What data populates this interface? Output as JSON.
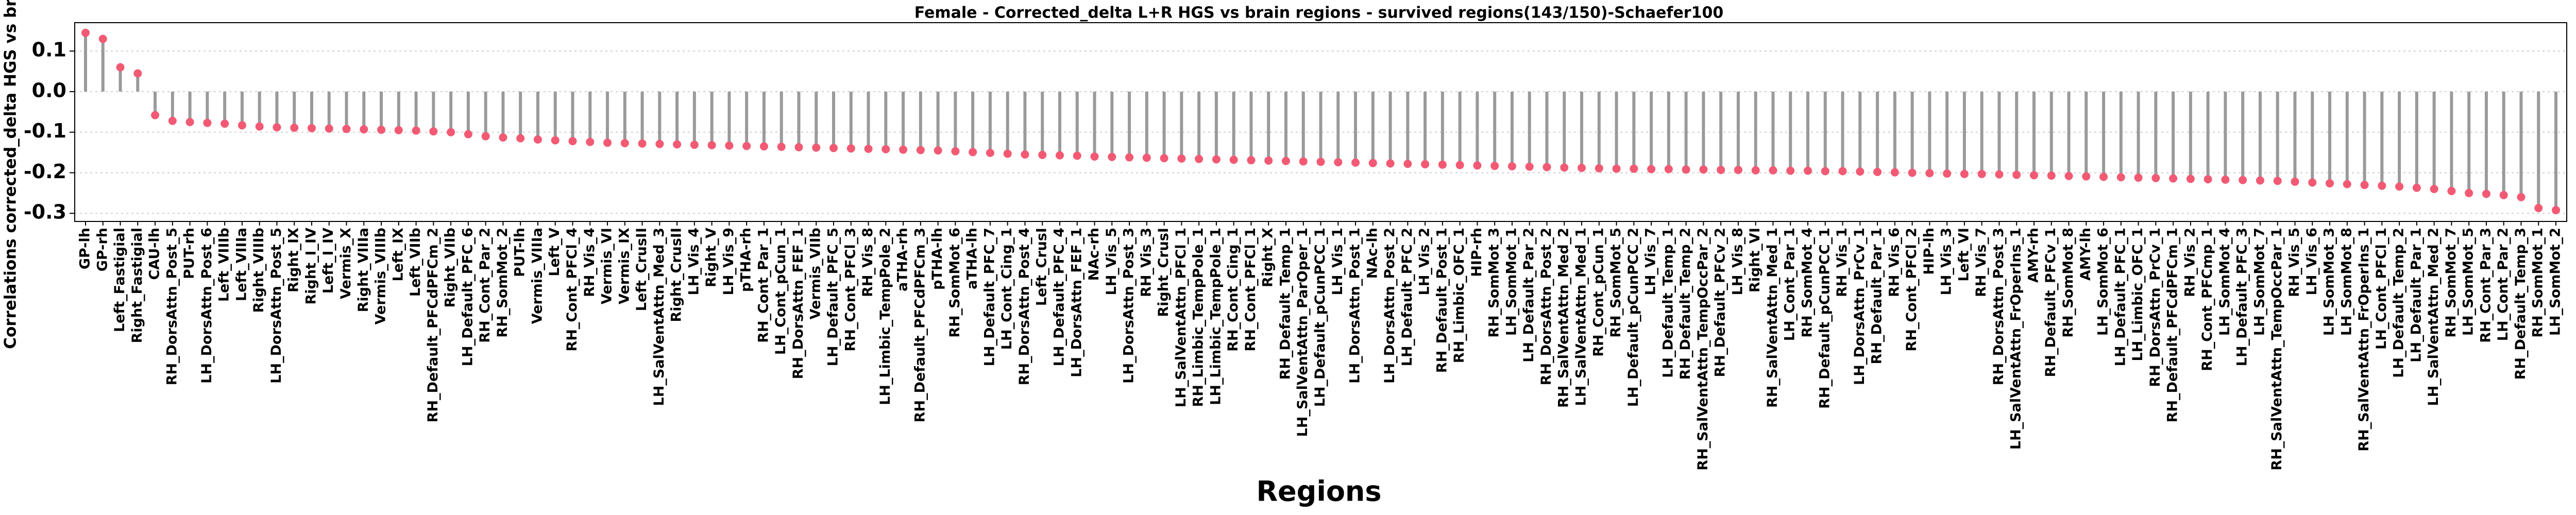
{
  "chart_data": {
    "type": "lollipop",
    "title": "Female - Corrected_delta L+R HGS vs brain regions - survived regions(143/150)-Schaefer100",
    "xlabel": "Regions",
    "ylabel": "Correlations corrected_delta HGS vs brain regions",
    "categories": [
      "GP-lh",
      "GP-rh",
      "Left_Fastigial",
      "Right_Fastigial",
      "CAU-lh",
      "RH_DorsAttn_Post_5",
      "PUT-rh",
      "LH_DorsAttn_Post_6",
      "Left_VIIIb",
      "Left_VIIIa",
      "Right_VIIIb",
      "LH_DorsAttn_Post_5",
      "Right_IX",
      "Right_I_IV",
      "Left_I_IV",
      "Vermis_X",
      "Right_VIIIa",
      "Vermis_VIIIb",
      "Left_IX",
      "Left_VIIb",
      "RH_Default_PFCdPFCm_2",
      "Right_VIIb",
      "LH_Default_PFC_6",
      "RH_Cont_Par_2",
      "RH_SomMot_2",
      "PUT-lh",
      "Vermis_VIIIa",
      "Left_V",
      "RH_Cont_PFCl_4",
      "RH_Vis_4",
      "Vermis_VI",
      "Vermis_IX",
      "Left_CrusII",
      "LH_SalVentAttn_Med_3",
      "Right_CrusII",
      "LH_Vis_4",
      "Right_V",
      "LH_Vis_9",
      "pTHA-rh",
      "RH_Cont_Par_1",
      "LH_Cont_pCun_1",
      "RH_DorsAttn_FEF_1",
      "Vermis_VIIb",
      "LH_Default_PFC_5",
      "RH_Cont_PFCl_3",
      "RH_Vis_8",
      "LH_Limbic_TempPole_2",
      "aTHA-rh",
      "RH_Default_PFCdPFCm_3",
      "pTHA-lh",
      "RH_SomMot_6",
      "aTHA-lh",
      "LH_Default_PFC_7",
      "LH_Cont_Cing_1",
      "RH_DorsAttn_Post_4",
      "Left_CrusI",
      "LH_Default_PFC_4",
      "LH_DorsAttn_FEF_1",
      "NAc-rh",
      "LH_Vis_5",
      "LH_DorsAttn_Post_3",
      "RH_Vis_3",
      "Right_CrusI",
      "LH_SalVentAttn_PFCl_1",
      "RH_Limbic_TempPole_1",
      "LH_Limbic_TempPole_1",
      "RH_Cont_Cing_1",
      "RH_Cont_PFCl_1",
      "Right_X",
      "RH_Default_Temp_1",
      "LH_SalVentAttn_ParOper_1",
      "LH_Default_pCunPCC_1",
      "LH_Vis_1",
      "LH_DorsAttn_Post_1",
      "NAc-lh",
      "LH_DorsAttn_Post_2",
      "LH_Default_PFC_2",
      "LH_Vis_2",
      "RH_Default_Post_1",
      "RH_Limbic_OFC_1",
      "HIP-rh",
      "RH_SomMot_3",
      "LH_SomMot_1",
      "LH_Default_Par_2",
      "RH_DorsAttn_Post_2",
      "RH_SalVentAttn_Med_2",
      "LH_SalVentAttn_Med_1",
      "RH_Cont_pCun_1",
      "RH_SomMot_5",
      "LH_Default_pCunPCC_2",
      "LH_Vis_7",
      "LH_Default_Temp_1",
      "RH_Default_Temp_2",
      "RH_SalVentAttn_TempOccPar_2",
      "RH_Default_PFCv_2",
      "LH_Vis_8",
      "Right_VI",
      "RH_SalVentAttn_Med_1",
      "LH_Cont_Par_1",
      "RH_SomMot_4",
      "RH_Default_pCunPCC_1",
      "RH_Vis_1",
      "LH_DorsAttn_PrCv_1",
      "RH_Default_Par_1",
      "RH_Vis_6",
      "RH_Cont_PFCl_2",
      "HIP-lh",
      "LH_Vis_3",
      "Left_VI",
      "RH_Vis_7",
      "RH_DorsAttn_Post_3",
      "LH_SalVentAttn_FrOperIns_1",
      "AMY-rh",
      "RH_Default_PFCv_1",
      "RH_SomMot_8",
      "AMY-lh",
      "LH_SomMot_6",
      "LH_Default_PFC_1",
      "LH_Limbic_OFC_1",
      "RH_DorsAttn_PrCv_1",
      "RH_Default_PFCdPFCm_1",
      "RH_Vis_2",
      "RH_Cont_PFCmp_1",
      "LH_SomMot_4",
      "LH_Default_PFC_3",
      "LH_SomMot_7",
      "RH_SalVentAttn_TempOccPar_1",
      "RH_Vis_5",
      "LH_Vis_6",
      "LH_SomMot_3",
      "LH_SomMot_8",
      "RH_SalVentAttn_FrOperIns_1",
      "LH_Cont_PFCl_1",
      "LH_Default_Temp_2",
      "LH_Default_Par_1",
      "LH_SalVentAttn_Med_2",
      "RH_SomMot_7",
      "LH_SomMot_5",
      "RH_Cont_Par_3",
      "LH_Cont_Par_2",
      "RH_Default_Temp_3",
      "RH_SomMot_1",
      "LH_SomMot_2"
    ],
    "values": [
      0.145,
      0.13,
      0.06,
      0.045,
      -0.058,
      -0.072,
      -0.075,
      -0.077,
      -0.079,
      -0.083,
      -0.086,
      -0.088,
      -0.089,
      -0.09,
      -0.091,
      -0.092,
      -0.093,
      -0.094,
      -0.095,
      -0.096,
      -0.098,
      -0.1,
      -0.105,
      -0.11,
      -0.113,
      -0.115,
      -0.118,
      -0.12,
      -0.122,
      -0.124,
      -0.126,
      -0.127,
      -0.128,
      -0.129,
      -0.13,
      -0.131,
      -0.132,
      -0.133,
      -0.134,
      -0.135,
      -0.136,
      -0.137,
      -0.138,
      -0.139,
      -0.14,
      -0.141,
      -0.142,
      -0.143,
      -0.144,
      -0.145,
      -0.147,
      -0.149,
      -0.151,
      -0.153,
      -0.155,
      -0.156,
      -0.157,
      -0.158,
      -0.16,
      -0.161,
      -0.162,
      -0.163,
      -0.164,
      -0.165,
      -0.166,
      -0.167,
      -0.168,
      -0.169,
      -0.17,
      -0.171,
      -0.172,
      -0.173,
      -0.174,
      -0.175,
      -0.176,
      -0.177,
      -0.178,
      -0.179,
      -0.18,
      -0.181,
      -0.182,
      -0.183,
      -0.184,
      -0.185,
      -0.186,
      -0.187,
      -0.188,
      -0.189,
      -0.19,
      -0.19,
      -0.191,
      -0.191,
      -0.192,
      -0.192,
      -0.193,
      -0.193,
      -0.194,
      -0.194,
      -0.195,
      -0.195,
      -0.196,
      -0.196,
      -0.197,
      -0.198,
      -0.199,
      -0.2,
      -0.201,
      -0.202,
      -0.203,
      -0.203,
      -0.204,
      -0.205,
      -0.206,
      -0.207,
      -0.208,
      -0.209,
      -0.21,
      -0.211,
      -0.212,
      -0.213,
      -0.214,
      -0.215,
      -0.216,
      -0.217,
      -0.218,
      -0.219,
      -0.22,
      -0.222,
      -0.224,
      -0.226,
      -0.228,
      -0.23,
      -0.232,
      -0.234,
      -0.237,
      -0.24,
      -0.245,
      -0.25,
      -0.252,
      -0.255,
      -0.26,
      -0.287,
      -0.292
    ],
    "color": "#f25a74",
    "stem_color": "#9a9a9a",
    "ylim": [
      -0.32,
      0.17
    ],
    "yticks": [
      -0.3,
      -0.2,
      -0.1,
      {
        "value": 0,
        "label": "0.0"
      },
      0.1
    ],
    "grid": true
  }
}
